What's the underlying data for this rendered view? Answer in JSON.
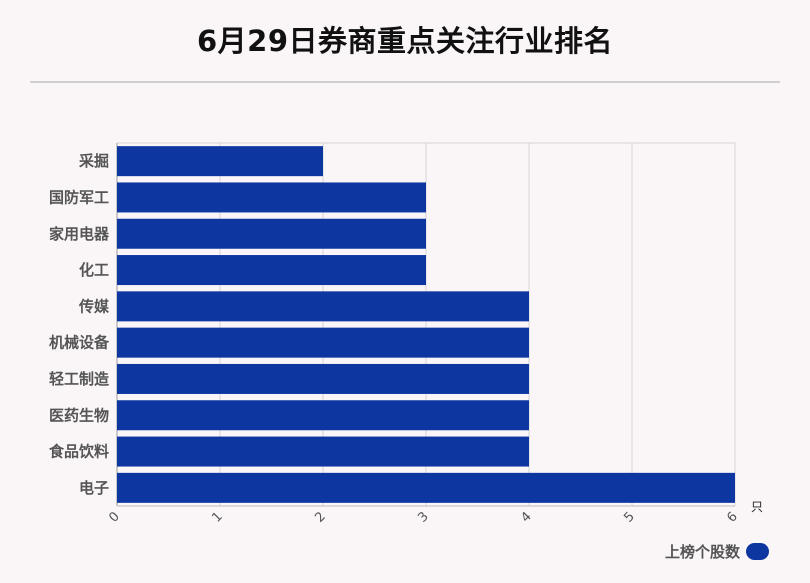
{
  "chart_data": {
    "type": "bar",
    "orientation": "horizontal",
    "title": "6月29日券商重点关注行业排名",
    "categories": [
      "采掘",
      "国防军工",
      "家用电器",
      "化工",
      "传媒",
      "机械设备",
      "轻工制造",
      "医药生物",
      "食品饮料",
      "电子"
    ],
    "series": [
      {
        "name": "上榜个股数",
        "values": [
          2,
          3,
          3,
          3,
          4,
          4,
          4,
          4,
          4,
          6
        ],
        "color": "#0d36a1"
      }
    ],
    "xlim": [
      0,
      6
    ],
    "xticks": [
      "0",
      "1",
      "2",
      "3",
      "4",
      "5",
      "6"
    ],
    "x_unit": "只",
    "grid": true,
    "legend_position": "bottom-right"
  }
}
